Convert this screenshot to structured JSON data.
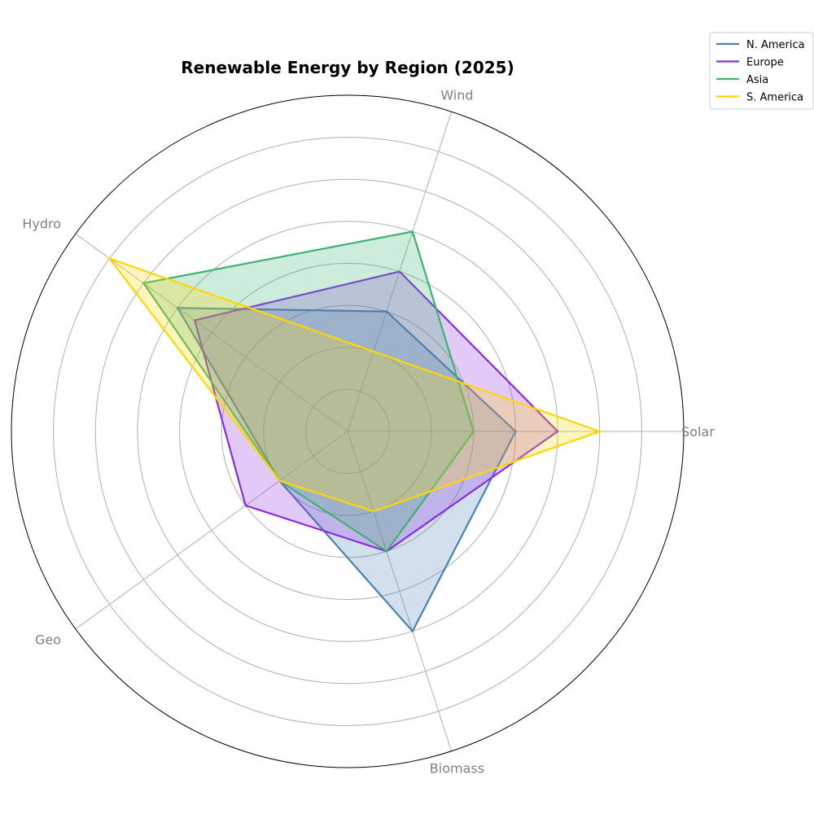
{
  "chart_data": {
    "type": "radar",
    "title": "Renewable Energy by Region (2025)",
    "categories": [
      "Solar",
      "Wind",
      "Hydro",
      "Geo",
      "Biomass"
    ],
    "rlim": [
      0,
      80
    ],
    "rings": [
      10,
      20,
      30,
      40,
      50,
      60,
      70
    ],
    "grid": true,
    "legend_position": "top-right",
    "series": [
      {
        "name": "N. America",
        "color": "#4682b4",
        "values": [
          40,
          30,
          50,
          20,
          50
        ]
      },
      {
        "name": "Europe",
        "color": "#8a2be2",
        "values": [
          50,
          40,
          45,
          30,
          30
        ]
      },
      {
        "name": "Asia",
        "color": "#3cb371",
        "values": [
          30,
          50,
          60,
          20,
          30
        ]
      },
      {
        "name": "S. America",
        "color": "#ffd700",
        "values": [
          60,
          20,
          70,
          20,
          20
        ]
      }
    ]
  }
}
